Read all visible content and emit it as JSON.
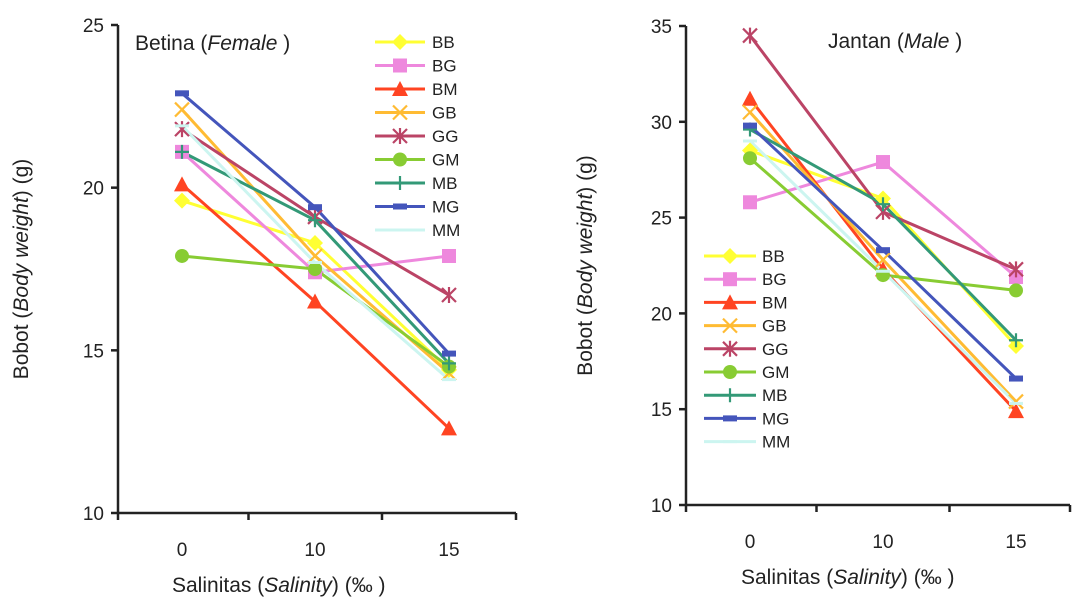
{
  "chart_data": [
    {
      "type": "line",
      "title": "Betina",
      "title_italic": "Female",
      "xlabel": "Salinitas",
      "xlabel_italic": "Salinity",
      "xlabel_unit": "(‰ )",
      "ylabel": "Bobot",
      "ylabel_italic": "Body weight",
      "ylabel_unit": "(g)",
      "categories": [
        "0",
        "10",
        "15"
      ],
      "ylim": [
        10,
        25
      ],
      "yticks": [
        10,
        15,
        20,
        25
      ],
      "grid": false,
      "legend_position": "top-right",
      "series": [
        {
          "name": "BB",
          "values": [
            19.6,
            18.3,
            14.4
          ],
          "color": "#ffff33",
          "marker": "diamond"
        },
        {
          "name": "BG",
          "values": [
            21.1,
            17.4,
            17.9
          ],
          "color": "#ee88dd",
          "marker": "square"
        },
        {
          "name": "BM",
          "values": [
            20.1,
            16.5,
            12.6
          ],
          "color": "#ff4422",
          "marker": "triangle"
        },
        {
          "name": "GB",
          "values": [
            22.4,
            17.9,
            14.3
          ],
          "color": "#ffbb33",
          "marker": "x"
        },
        {
          "name": "GG",
          "values": [
            21.8,
            19.1,
            16.7
          ],
          "color": "#bb4466",
          "marker": "star"
        },
        {
          "name": "GM",
          "values": [
            17.9,
            17.5,
            14.5
          ],
          "color": "#88cc33",
          "marker": "circle"
        },
        {
          "name": "MB",
          "values": [
            21.1,
            19.0,
            14.6
          ],
          "color": "#339977",
          "marker": "plus"
        },
        {
          "name": "MG",
          "values": [
            22.9,
            19.4,
            14.9
          ],
          "color": "#4455bb",
          "marker": "dash"
        },
        {
          "name": "MM",
          "values": [
            21.9,
            17.7,
            14.1
          ],
          "color": "#ccf5f0",
          "marker": "line"
        }
      ]
    },
    {
      "type": "line",
      "title": "Jantan",
      "title_italic": "Male",
      "xlabel": "Salinitas",
      "xlabel_italic": "Salinity",
      "xlabel_unit": "(‰ )",
      "ylabel": "Bobot",
      "ylabel_italic": "Body weight",
      "ylabel_unit": "(g)",
      "categories": [
        "0",
        "10",
        "15"
      ],
      "ylim": [
        10,
        35
      ],
      "yticks": [
        10,
        15,
        20,
        25,
        30,
        35
      ],
      "grid": false,
      "legend_position": "bottom-left",
      "series": [
        {
          "name": "BB",
          "values": [
            28.5,
            26.0,
            18.3
          ],
          "color": "#ffff33",
          "marker": "diamond"
        },
        {
          "name": "BG",
          "values": [
            25.8,
            27.9,
            21.9
          ],
          "color": "#ee88dd",
          "marker": "square"
        },
        {
          "name": "BM",
          "values": [
            31.2,
            22.3,
            14.9
          ],
          "color": "#ff4422",
          "marker": "triangle"
        },
        {
          "name": "GB",
          "values": [
            30.5,
            22.8,
            15.4
          ],
          "color": "#ffbb33",
          "marker": "x"
        },
        {
          "name": "GG",
          "values": [
            34.5,
            25.3,
            22.3
          ],
          "color": "#bb4466",
          "marker": "star"
        },
        {
          "name": "GM",
          "values": [
            28.1,
            22.0,
            21.2
          ],
          "color": "#88cc33",
          "marker": "circle"
        },
        {
          "name": "MB",
          "values": [
            29.6,
            25.7,
            18.6
          ],
          "color": "#339977",
          "marker": "plus"
        },
        {
          "name": "MG",
          "values": [
            29.8,
            23.3,
            16.6
          ],
          "color": "#4455bb",
          "marker": "dash"
        },
        {
          "name": "MM",
          "values": [
            29.0,
            22.2,
            15.3
          ],
          "color": "#ccf5f0",
          "marker": "line"
        }
      ]
    }
  ]
}
